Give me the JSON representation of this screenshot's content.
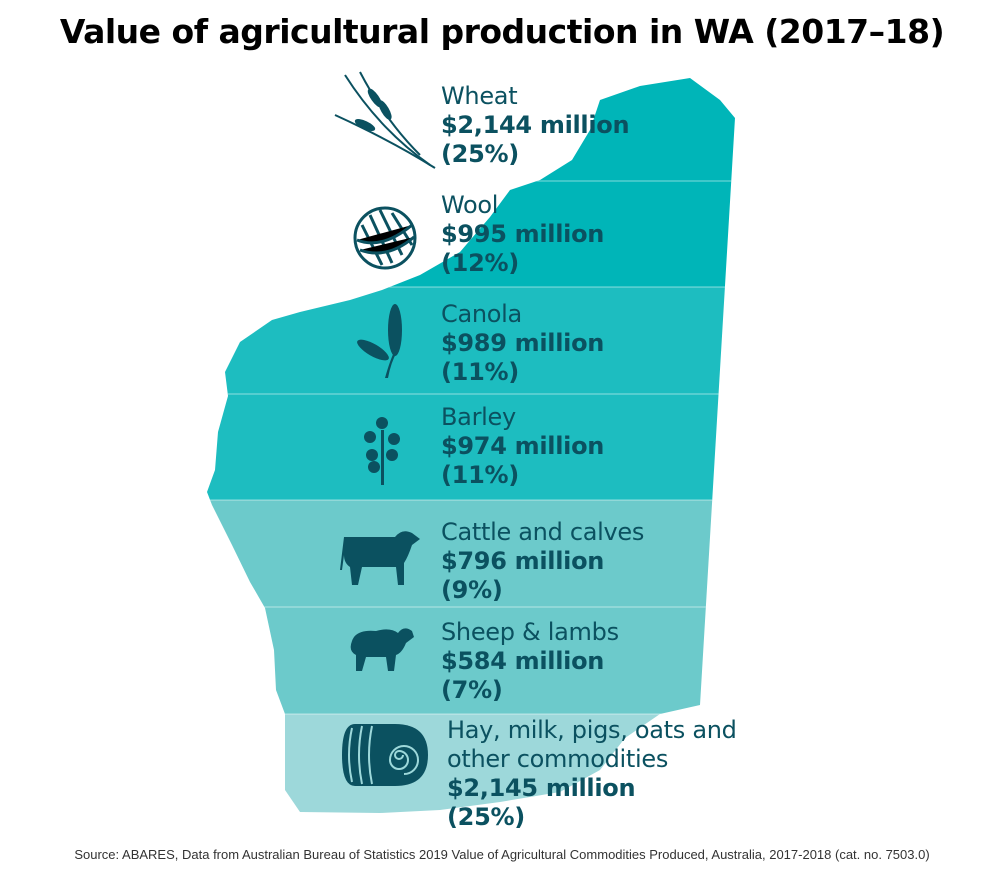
{
  "title": "Value of agricultural production in WA (2017–18)",
  "source": "Source: ABARES, Data from Australian Bureau of Statistics 2019 Value of Agricultural Commodities Produced, Australia, 2017-2018 (cat. no. 7503.0)",
  "colors": {
    "text": "#0b5160",
    "band_dark": "#00b5b8",
    "band_mid": "#1dbdc0",
    "band_light": "#6ccacb",
    "band_pale": "#9dd8da"
  },
  "chart_data": {
    "type": "table",
    "title": "Value of agricultural production in WA (2017–18)",
    "unit": "$ million",
    "rows": [
      {
        "name": "Wheat",
        "value_label": "$2,144 million",
        "share_label": "(25%)",
        "value": 2144,
        "share": 25,
        "icon": "wheat-icon",
        "color": "#00b5b8"
      },
      {
        "name": "Wool",
        "value_label": "$995 million",
        "share_label": "(12%)",
        "value": 995,
        "share": 12,
        "icon": "yarn-ball-icon",
        "color": "#00b5b8"
      },
      {
        "name": "Canola",
        "value_label": "$989 million",
        "share_label": "(11%)",
        "value": 989,
        "share": 11,
        "icon": "grain-icon",
        "color": "#1dbdc0"
      },
      {
        "name": "Barley",
        "value_label": "$974 million",
        "share_label": "(11%)",
        "value": 974,
        "share": 11,
        "icon": "flower-icon",
        "color": "#1dbdc0"
      },
      {
        "name": "Cattle and calves",
        "value_label": "$796 million",
        "share_label": "(9%)",
        "value": 796,
        "share": 9,
        "icon": "cow-icon",
        "color": "#6ccacb"
      },
      {
        "name": "Sheep & lambs",
        "value_label": "$584 million",
        "share_label": "(7%)",
        "value": 584,
        "share": 7,
        "icon": "sheep-icon",
        "color": "#6ccacb"
      },
      {
        "name": "Hay, milk, pigs, oats and other commodities",
        "value_label": "$2,145 million",
        "share_label": "(25%)",
        "value": 2145,
        "share": 25,
        "icon": "hay-bale-icon",
        "color": "#9dd8da"
      }
    ]
  }
}
